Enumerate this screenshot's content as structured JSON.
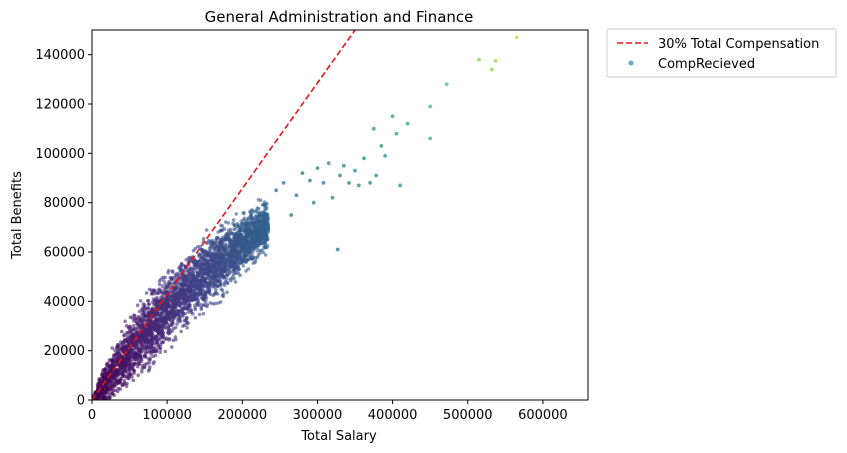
{
  "chart_data": {
    "type": "scatter",
    "title": "General Administration and Finance",
    "xlabel": "Total Salary",
    "ylabel": "Total Benefits",
    "xlim": [
      0,
      660000
    ],
    "ylim": [
      0,
      150000
    ],
    "xticks": [
      0,
      100000,
      200000,
      300000,
      400000,
      500000,
      600000
    ],
    "xtick_labels": [
      "0",
      "100000",
      "200000",
      "300000",
      "400000",
      "500000",
      "600000"
    ],
    "yticks": [
      0,
      20000,
      40000,
      60000,
      80000,
      100000,
      120000,
      140000
    ],
    "ytick_labels": [
      "0",
      "20000",
      "40000",
      "60000",
      "80000",
      "100000",
      "120000",
      "140000"
    ],
    "grid": false,
    "legend_position": "outside-top-right",
    "colormap": "viridis",
    "series": [
      {
        "name": "30% Total Compensation",
        "kind": "line",
        "style": "dashed",
        "color": "#e8141b",
        "x": [
          0,
          600000
        ],
        "y": [
          0,
          257143
        ]
      },
      {
        "name": "CompRecieved",
        "kind": "scatter",
        "color_by": "total_compensation",
        "legend_color": "#3b8bbd",
        "description_points": "dense band of employees from (0,0) curving to ~(230000,80000); sparse outliers listed below",
        "dense_band": {
          "x": [
            0,
            20000,
            50000,
            80000,
            110000,
            140000,
            170000,
            200000,
            230000
          ],
          "y_center": [
            0,
            8000,
            20000,
            30000,
            40000,
            48000,
            56000,
            63000,
            70000
          ],
          "y_spread": [
            0,
            7000,
            10000,
            12000,
            12000,
            11000,
            10000,
            9000,
            8000
          ]
        },
        "outliers": [
          {
            "x": 245000,
            "y": 85000
          },
          {
            "x": 255000,
            "y": 88000
          },
          {
            "x": 265000,
            "y": 75000
          },
          {
            "x": 272000,
            "y": 83000
          },
          {
            "x": 280000,
            "y": 92000
          },
          {
            "x": 290000,
            "y": 89000
          },
          {
            "x": 295000,
            "y": 80000
          },
          {
            "x": 300000,
            "y": 94000
          },
          {
            "x": 308000,
            "y": 88000
          },
          {
            "x": 315000,
            "y": 96000
          },
          {
            "x": 320000,
            "y": 82000
          },
          {
            "x": 327000,
            "y": 61000
          },
          {
            "x": 330000,
            "y": 91000
          },
          {
            "x": 335000,
            "y": 95000
          },
          {
            "x": 342000,
            "y": 88000
          },
          {
            "x": 350000,
            "y": 93000
          },
          {
            "x": 355000,
            "y": 87000
          },
          {
            "x": 362000,
            "y": 98000
          },
          {
            "x": 370000,
            "y": 88000
          },
          {
            "x": 375000,
            "y": 110000
          },
          {
            "x": 378000,
            "y": 91000
          },
          {
            "x": 385000,
            "y": 103000
          },
          {
            "x": 390000,
            "y": 99000
          },
          {
            "x": 400000,
            "y": 115000
          },
          {
            "x": 405000,
            "y": 108000
          },
          {
            "x": 410000,
            "y": 87000
          },
          {
            "x": 420000,
            "y": 112000
          },
          {
            "x": 450000,
            "y": 119000
          },
          {
            "x": 450000,
            "y": 106000
          },
          {
            "x": 472000,
            "y": 128000
          },
          {
            "x": 515000,
            "y": 138000
          },
          {
            "x": 532000,
            "y": 134000
          },
          {
            "x": 537000,
            "y": 137500
          },
          {
            "x": 565000,
            "y": 147000
          }
        ]
      }
    ]
  }
}
